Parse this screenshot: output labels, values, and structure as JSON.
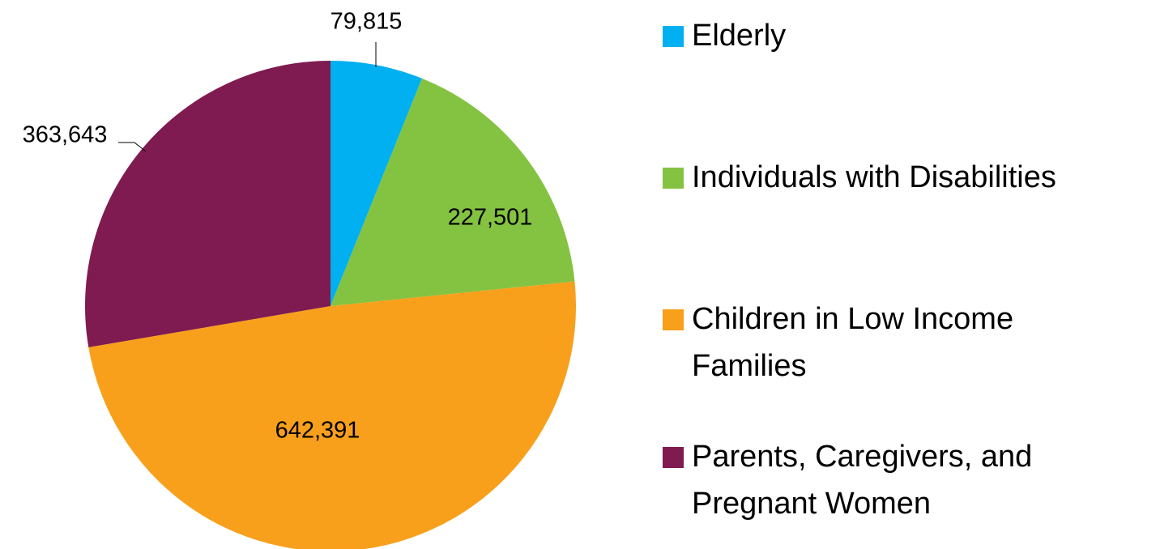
{
  "chart_data": {
    "type": "pie",
    "categories": [
      "Elderly",
      "Individuals with Disabilities",
      "Children in Low Income Families",
      "Parents, Caregivers, and Pregnant Women"
    ],
    "values": [
      79815,
      227501,
      642391,
      363643
    ],
    "value_labels": [
      "79,815",
      "227,501",
      "642,391",
      "363,643"
    ],
    "colors": [
      "#00b0f0",
      "#84c341",
      "#f8a01c",
      "#7f1b50"
    ]
  }
}
